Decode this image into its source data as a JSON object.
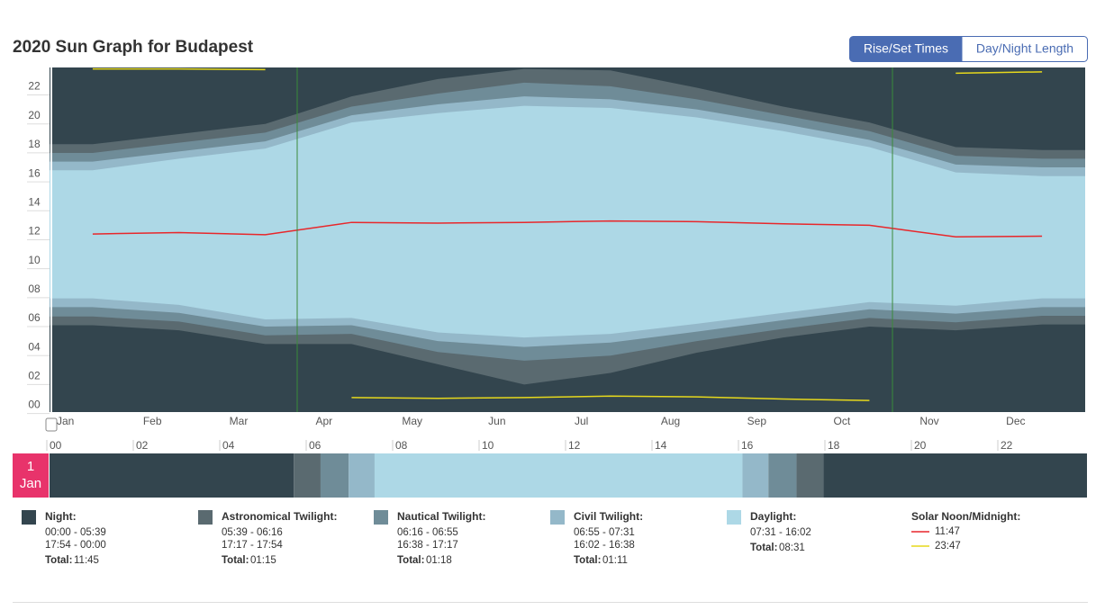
{
  "title": "2020 Sun Graph for Budapest",
  "tabs": [
    "Rise/Set Times",
    "Day/Night Length"
  ],
  "chart_data": {
    "type": "sun",
    "categories": [
      "Jan",
      "Feb",
      "Mar",
      "Apr",
      "May",
      "Jun",
      "Jul",
      "Aug",
      "Sep",
      "Oct",
      "Nov",
      "Dec"
    ],
    "ylim": [
      -0.4,
      23.4
    ],
    "yticks": [
      {
        "value": 0,
        "label": "00"
      },
      {
        "value": 2,
        "label": "02"
      },
      {
        "value": 4,
        "label": "04"
      },
      {
        "value": 6,
        "label": "06"
      },
      {
        "value": 8,
        "label": "08"
      },
      10,
      12,
      14,
      16,
      18,
      20,
      22
    ],
    "night_color": "#33454e",
    "bands": [
      {
        "color": "#5a6a70",
        "morning": [
          5.6,
          5.25,
          4.3,
          4.3,
          2.9,
          1.5,
          2.3,
          3.7,
          4.75,
          5.5,
          5.25,
          5.65
        ],
        "evening": [
          18.1,
          18.8,
          19.5,
          21.4,
          22.6,
          23.3,
          23.2,
          22.0,
          20.7,
          19.6,
          17.9,
          17.7
        ]
      },
      {
        "color": "#6f8c98",
        "morning": [
          6.2,
          5.85,
          4.9,
          5.0,
          3.75,
          3.15,
          3.5,
          4.5,
          5.35,
          6.1,
          5.8,
          6.25
        ],
        "evening": [
          17.5,
          18.2,
          18.9,
          20.7,
          21.6,
          22.35,
          22.1,
          21.2,
          20.1,
          19.0,
          17.3,
          17.1
        ]
      },
      {
        "color": "#94b8c9",
        "morning": [
          6.85,
          6.45,
          5.5,
          5.6,
          4.5,
          4.1,
          4.4,
          5.15,
          5.95,
          6.7,
          6.4,
          6.85
        ],
        "evening": [
          16.9,
          17.6,
          18.3,
          20.1,
          20.85,
          21.4,
          21.2,
          20.5,
          19.5,
          18.4,
          16.7,
          16.5
        ]
      },
      {
        "color": "#add8e6",
        "morning": [
          7.45,
          7.0,
          6.0,
          6.1,
          5.1,
          4.75,
          5.0,
          5.7,
          6.45,
          7.2,
          6.95,
          7.45
        ],
        "evening": [
          16.3,
          17.1,
          17.8,
          19.6,
          20.25,
          20.75,
          20.6,
          19.95,
          19.0,
          17.9,
          16.15,
          15.9
        ]
      }
    ],
    "series": [
      {
        "color": "#e8272b",
        "values": [
          11.9,
          12.0,
          11.85,
          12.7,
          12.65,
          12.7,
          12.8,
          12.75,
          12.6,
          12.5,
          11.7,
          11.75
        ]
      },
      {
        "color": "#e6d81c",
        "values": [
          23.3,
          23.3,
          23.25,
          0.6,
          0.55,
          0.6,
          0.7,
          0.65,
          0.5,
          0.4,
          23.0,
          23.1
        ]
      }
    ]
  },
  "day_bar": {
    "date_day": "1",
    "date_month": "Jan",
    "hour_ticks": [
      {
        "value": 0,
        "label": "00"
      },
      {
        "value": 2,
        "label": "02"
      },
      {
        "value": 4,
        "label": "04"
      },
      {
        "value": 6,
        "label": "06"
      },
      {
        "value": 8,
        "label": "08"
      },
      10,
      12,
      14,
      16,
      18,
      20,
      22
    ],
    "bounds": [
      0,
      5.65,
      6.27,
      6.92,
      7.52,
      16.03,
      16.63,
      17.28,
      17.9,
      24
    ],
    "colors": [
      "#33454e",
      "#5a6a70",
      "#6f8c98",
      "#94b8c9",
      "#add8e6",
      "#94b8c9",
      "#6f8c98",
      "#5a6a70",
      "#33454e"
    ]
  },
  "legend": {
    "total_label": "Total:",
    "items": [
      {
        "name": "Night:",
        "color": "#33454e",
        "lines": [
          "00:00 - 05:39",
          "17:54 - 00:00"
        ],
        "total": "11:45"
      },
      {
        "name": "Astronomical Twilight:",
        "color": "#5a6a70",
        "lines": [
          "05:39 - 06:16",
          "17:17 - 17:54"
        ],
        "total": "01:15"
      },
      {
        "name": "Nautical Twilight:",
        "color": "#6f8c98",
        "lines": [
          "06:16 - 06:55",
          "16:38 - 17:17"
        ],
        "total": "01:18"
      },
      {
        "name": "Civil Twilight:",
        "color": "#94b8c9",
        "lines": [
          "06:55 - 07:31",
          "16:02 - 16:38"
        ],
        "total": "01:11"
      },
      {
        "name": "Daylight:",
        "color": "#add8e6",
        "lines": [
          "07:31 - 16:02"
        ],
        "total": "08:31"
      }
    ],
    "noon": {
      "name": "Solar Noon/Midnight:",
      "lines": [
        "11:47",
        "23:47"
      ]
    }
  }
}
